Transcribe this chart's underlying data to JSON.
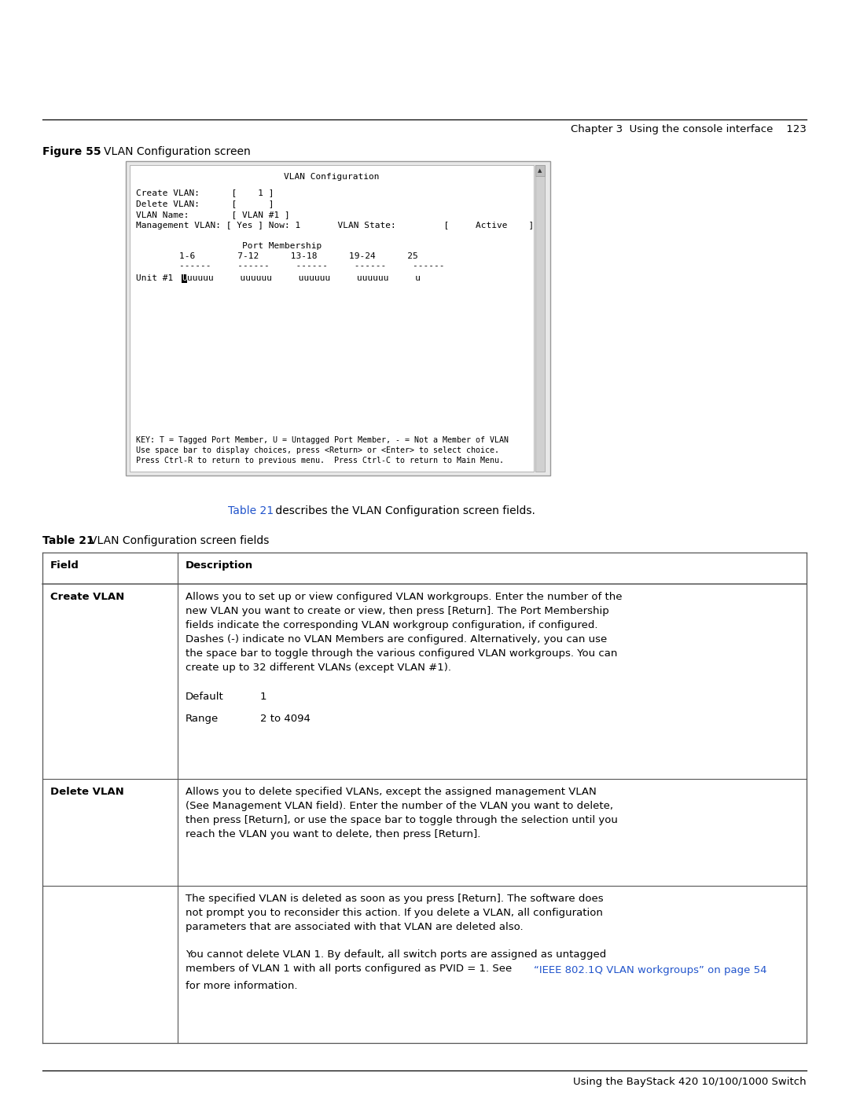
{
  "bg_color": "#ffffff",
  "page_header_right": "Chapter 3  Using the console interface    123",
  "page_footer_right": "Using the BayStack 420 10/100/1000 Switch",
  "figure_label": "Figure 55",
  "figure_title": "VLAN Configuration screen",
  "terminal_title": "VLAN Configuration",
  "terminal_line1": "Create VLAN:      [    1 ]",
  "terminal_line2": "Delete VLAN:      [      ]",
  "terminal_line3": "VLAN Name:        [ VLAN #1 ]",
  "terminal_line4": "Management VLAN: [ Yes ] Now: 1       VLAN State:         [     Active    ]",
  "terminal_pm_header": "Port Membership",
  "terminal_pm_cols": "          1-6        7-12       13-18      19-24      25",
  "terminal_pm_dashes": "          ------     ------     ------     ------     ------",
  "terminal_unit_pre": "Unit #1   ",
  "terminal_unit_hchar": "U",
  "terminal_unit_post": "uuuuu     uuuuuu     uuuuuu     uuuuuu     u",
  "terminal_key1": "KEY: T = Tagged Port Member, U = Untagged Port Member, - = Not a Member of VLAN",
  "terminal_key2": "Use space bar to display choices, press <Return> or <Enter> to select choice.",
  "terminal_key3": "Press Ctrl-R to return to previous menu.  Press Ctrl-C to return to Main Menu.",
  "ref_blue": "Table 21",
  "ref_rest": " describes the VLAN Configuration screen fields.",
  "table_label": "Table 21",
  "table_title": "VLAN Configuration screen fields",
  "col1_header": "Field",
  "col2_header": "Description",
  "row1_field": "Create VLAN",
  "row1_desc1": "Allows you to set up or view configured VLAN workgroups. Enter the number of the\nnew VLAN you want to create or view, then press [Return]. The Port Membership\nfields indicate the corresponding VLAN workgroup configuration, if configured.\nDashes (-) indicate no VLAN Members are configured. Alternatively, you can use\nthe space bar to toggle through the various configured VLAN workgroups. You can\ncreate up to 32 different VLANs (except VLAN #1).",
  "row1_default_label": "Default",
  "row1_default_val": "1",
  "row1_range_label": "Range",
  "row1_range_val": "2 to 4094",
  "row2_field": "Delete VLAN",
  "row2_desc": "Allows you to delete specified VLANs, except the assigned management VLAN\n(See Management VLAN field). Enter the number of the VLAN you want to delete,\nthen press [Return], or use the space bar to toggle through the selection until you\nreach the VLAN you want to delete, then press [Return].",
  "row3_desc_para1": "The specified VLAN is deleted as soon as you press [Return]. The software does\nnot prompt you to reconsider this action. If you delete a VLAN, all configuration\nparameters that are associated with that VLAN are deleted also.",
  "row3_desc_para2_pre": "You cannot delete VLAN 1. By default, all switch ports are assigned as untagged\nmembers of VLAN 1 with all ports configured as PVID = 1. See ",
  "row3_desc_link": "“IEEE 802.1Q VLAN workgroups” on page 54",
  "row3_desc_para2_post": " for more information.",
  "link_color": "#2255cc",
  "header_line_color": "#000000",
  "table_border_color": "#555555",
  "mono_fontsize": 8.0,
  "body_fontsize": 9.5
}
